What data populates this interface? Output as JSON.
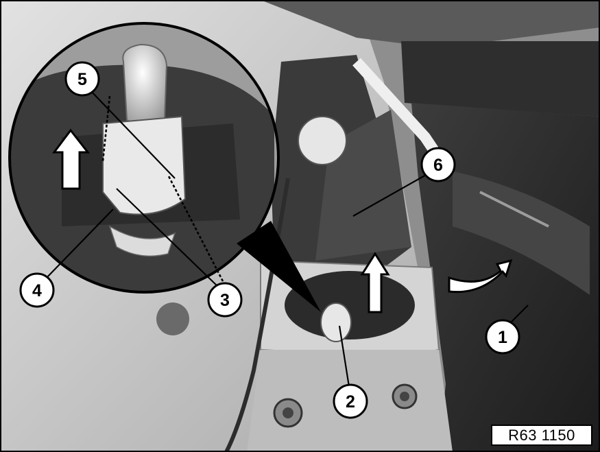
{
  "figure": {
    "id_label": "R63 1150"
  },
  "callouts": [
    {
      "number": "1"
    },
    {
      "number": "2"
    },
    {
      "number": "3"
    },
    {
      "number": "4"
    },
    {
      "number": "5"
    },
    {
      "number": "6"
    }
  ],
  "colors": {
    "carpet": "#2a2a2a",
    "panel": "#cfcfcf",
    "shadow": "#3a3a3a",
    "lamp_socket": "#e8e8e8",
    "line": "#000000"
  }
}
